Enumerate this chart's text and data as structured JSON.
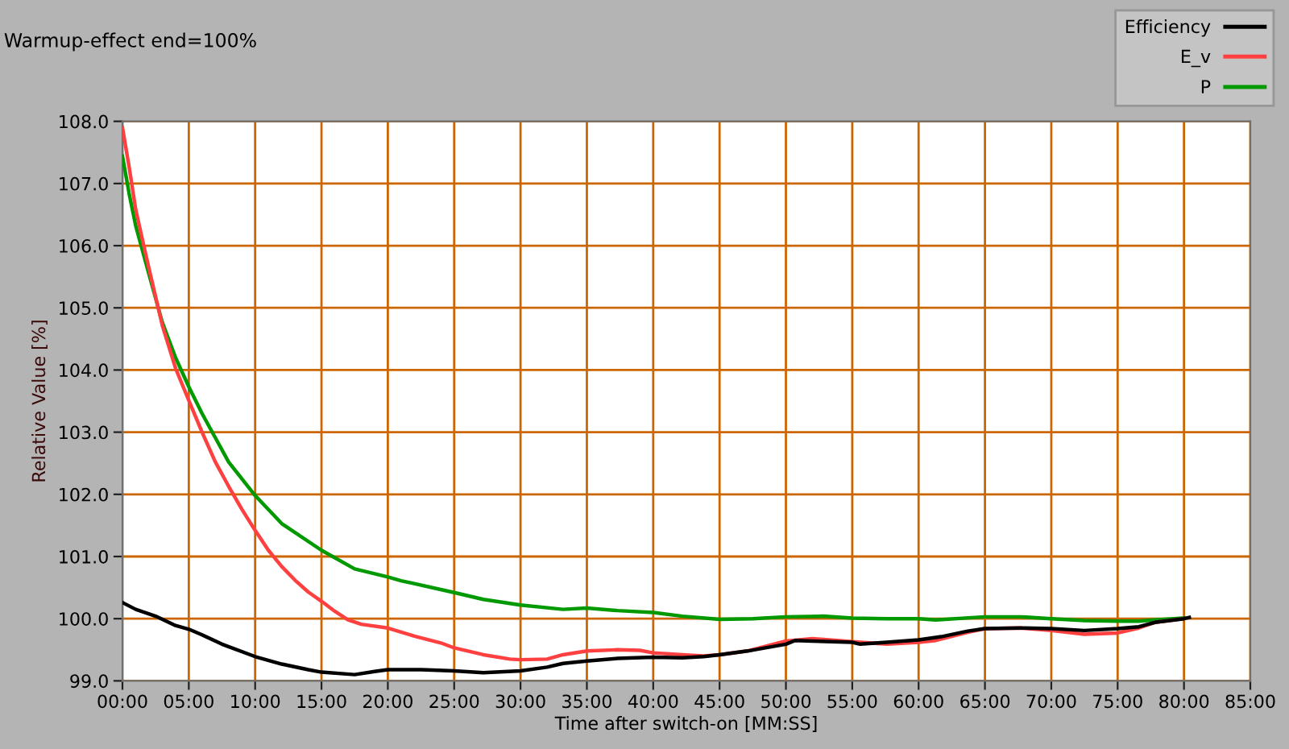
{
  "chart_data": {
    "type": "line",
    "title": "Warmup-effect end=100%",
    "xlabel": "Time after switch-on [MM:SS]",
    "ylabel": "Relative Value [%]",
    "xlim": [
      0,
      85
    ],
    "xticks": [
      {
        "value": 0,
        "label": "00:00"
      },
      {
        "value": 5,
        "label": "05:00"
      },
      {
        "value": 10,
        "label": "10:00"
      },
      {
        "value": 15,
        "label": "15:00"
      },
      {
        "value": 20,
        "label": "20:00"
      },
      {
        "value": 25,
        "label": "25:00"
      },
      {
        "value": 30,
        "label": "30:00"
      },
      {
        "value": 35,
        "label": "35:00"
      },
      {
        "value": 40,
        "label": "40:00"
      },
      {
        "value": 45,
        "label": "45:00"
      },
      {
        "value": 50,
        "label": "50:00"
      },
      {
        "value": 55,
        "label": "55:00"
      },
      {
        "value": 60,
        "label": "60:00"
      },
      {
        "value": 65,
        "label": "65:00"
      },
      {
        "value": 70,
        "label": "70:00"
      },
      {
        "value": 75,
        "label": "75:00"
      },
      {
        "value": 80,
        "label": "80:00"
      },
      {
        "value": 85,
        "label": "85:00"
      }
    ],
    "ylim": [
      99,
      108
    ],
    "yticks": [
      {
        "value": 99,
        "label": "99.0"
      },
      {
        "value": 100,
        "label": "100.0"
      },
      {
        "value": 101,
        "label": "101.0"
      },
      {
        "value": 102,
        "label": "102.0"
      },
      {
        "value": 103,
        "label": "103.0"
      },
      {
        "value": 104,
        "label": "104.0"
      },
      {
        "value": 105,
        "label": "105.0"
      },
      {
        "value": 106,
        "label": "106.0"
      },
      {
        "value": 107,
        "label": "107.0"
      },
      {
        "value": 108,
        "label": "108.0"
      }
    ],
    "grid": true,
    "legend": "top right",
    "series": [
      {
        "name": "Efficiency",
        "color": "#000000",
        "x": [
          0,
          1,
          2.5,
          4,
          5,
          6,
          7.5,
          10,
          12,
          14,
          15,
          17.5,
          19,
          20,
          22.5,
          25,
          27.2,
          30,
          32,
          33.2,
          35,
          37.3,
          40,
          42.2,
          43.8,
          45,
          47.1,
          50,
          50.7,
          52,
          55,
          55.6,
          57.6,
          60,
          61.7,
          63.7,
          65,
          67.7,
          70,
          72.5,
          75,
          76.6,
          77.8,
          80,
          80.4
        ],
        "values": [
          100.26,
          100.15,
          100.04,
          99.89,
          99.83,
          99.74,
          99.59,
          99.39,
          99.27,
          99.18,
          99.14,
          99.1,
          99.15,
          99.18,
          99.18,
          99.16,
          99.13,
          99.16,
          99.22,
          99.28,
          99.32,
          99.36,
          99.38,
          99.37,
          99.39,
          99.42,
          99.48,
          99.59,
          99.65,
          99.64,
          99.62,
          99.59,
          99.62,
          99.66,
          99.71,
          99.8,
          99.84,
          99.85,
          99.84,
          99.81,
          99.84,
          99.87,
          99.94,
          100.0,
          100.02
        ]
      },
      {
        "name": "E_v",
        "color": "#ff4040",
        "x": [
          0,
          0.5,
          1,
          1.5,
          2,
          3,
          4,
          5,
          6,
          7,
          8,
          9,
          10,
          11,
          12,
          13,
          14,
          15,
          16,
          17,
          18,
          20,
          22,
          24,
          25,
          27.2,
          29.2,
          30,
          32,
          33.2,
          35,
          37.3,
          39,
          40,
          42.2,
          43.8,
          45,
          47.1,
          50,
          52,
          55,
          57.6,
          60,
          61.3,
          63.7,
          65,
          67.7,
          70,
          71.7,
          72.5,
          75,
          76.6,
          77.8,
          80
        ],
        "values": [
          107.9,
          107.27,
          106.58,
          106.1,
          105.63,
          104.72,
          104.03,
          103.51,
          103.0,
          102.52,
          102.13,
          101.76,
          101.42,
          101.1,
          100.84,
          100.62,
          100.43,
          100.28,
          100.12,
          99.98,
          99.91,
          99.85,
          99.72,
          99.61,
          99.53,
          99.42,
          99.35,
          99.34,
          99.35,
          99.42,
          99.48,
          99.5,
          99.49,
          99.45,
          99.42,
          99.4,
          99.42,
          99.48,
          99.64,
          99.68,
          99.63,
          99.59,
          99.62,
          99.65,
          99.78,
          99.84,
          99.85,
          99.81,
          99.77,
          99.75,
          99.77,
          99.85,
          99.94,
          100.0
        ]
      },
      {
        "name": "P",
        "color": "#009900",
        "x": [
          0,
          0.5,
          1,
          2,
          3,
          4,
          5,
          6,
          7,
          8,
          10,
          12,
          15,
          17.5,
          20,
          21,
          25,
          27.2,
          30,
          33.2,
          35,
          37.3,
          40,
          42.2,
          45,
          47.5,
          50,
          52.8,
          55,
          57.6,
          60,
          61.3,
          65,
          67.7,
          70,
          72.5,
          75,
          76.6,
          77.8,
          80
        ],
        "values": [
          107.44,
          106.84,
          106.32,
          105.54,
          104.77,
          104.2,
          103.73,
          103.3,
          102.91,
          102.52,
          101.98,
          101.53,
          101.1,
          100.8,
          100.67,
          100.61,
          100.42,
          100.31,
          100.22,
          100.15,
          100.17,
          100.13,
          100.1,
          100.04,
          99.99,
          100.0,
          100.03,
          100.04,
          100.01,
          100.0,
          100.0,
          99.98,
          100.03,
          100.03,
          100.0,
          99.97,
          99.96,
          99.96,
          99.98,
          100.01
        ]
      }
    ]
  }
}
